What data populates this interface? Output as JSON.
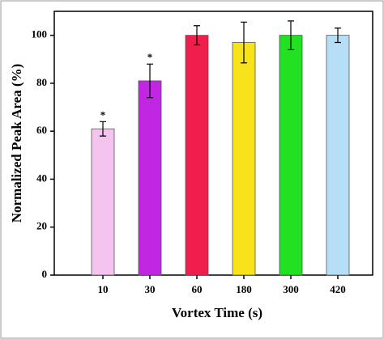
{
  "chart_data": {
    "type": "bar",
    "xlabel": "Vortex Time (s)",
    "ylabel": "Normalized Peak Area (%)",
    "categories": [
      "10",
      "30",
      "60",
      "180",
      "300",
      "420"
    ],
    "values": [
      61,
      81,
      100,
      97,
      100,
      100
    ],
    "errors": [
      3,
      7,
      4,
      8.5,
      6,
      3
    ],
    "value_annotations": [
      "*",
      "*",
      null,
      null,
      null,
      null
    ],
    "colors": [
      "#f5c4ee",
      "#c126e3",
      "#f01e4c",
      "#f8e21a",
      "#22e022",
      "#b6def7"
    ],
    "ylim": [
      0,
      110
    ],
    "yticks": [
      0,
      20,
      40,
      60,
      80,
      100
    ]
  }
}
